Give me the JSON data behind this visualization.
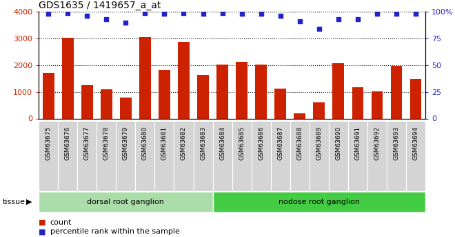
{
  "title": "GDS1635 / 1419657_a_at",
  "samples": [
    "GSM63675",
    "GSM63676",
    "GSM63677",
    "GSM63678",
    "GSM63679",
    "GSM63680",
    "GSM63681",
    "GSM63682",
    "GSM63683",
    "GSM63684",
    "GSM63685",
    "GSM63686",
    "GSM63687",
    "GSM63688",
    "GSM63689",
    "GSM63690",
    "GSM63691",
    "GSM63692",
    "GSM63693",
    "GSM63694"
  ],
  "counts": [
    1720,
    3040,
    1250,
    1100,
    780,
    3050,
    1820,
    2870,
    1640,
    2030,
    2120,
    2020,
    1130,
    200,
    600,
    2080,
    1160,
    1020,
    1970,
    1470
  ],
  "percentiles": [
    98,
    99,
    96,
    93,
    90,
    99,
    98,
    99,
    98,
    99,
    98,
    98,
    96,
    91,
    84,
    93,
    93,
    98,
    98,
    98
  ],
  "group1_label": "dorsal root ganglion",
  "group2_label": "nodose root ganglion",
  "group1_count": 9,
  "group2_count": 11,
  "bar_color": "#cc2200",
  "dot_color": "#2222cc",
  "ylim_left": [
    0,
    4000
  ],
  "ylim_right": [
    0,
    100
  ],
  "yticks_left": [
    0,
    1000,
    2000,
    3000,
    4000
  ],
  "yticks_right": [
    0,
    25,
    50,
    75,
    100
  ],
  "group1_bg": "#aaddaa",
  "group2_bg": "#44cc44",
  "xtick_bg": "#d4d4d4",
  "plot_bg": "#ffffff",
  "tissue_label": "tissue"
}
